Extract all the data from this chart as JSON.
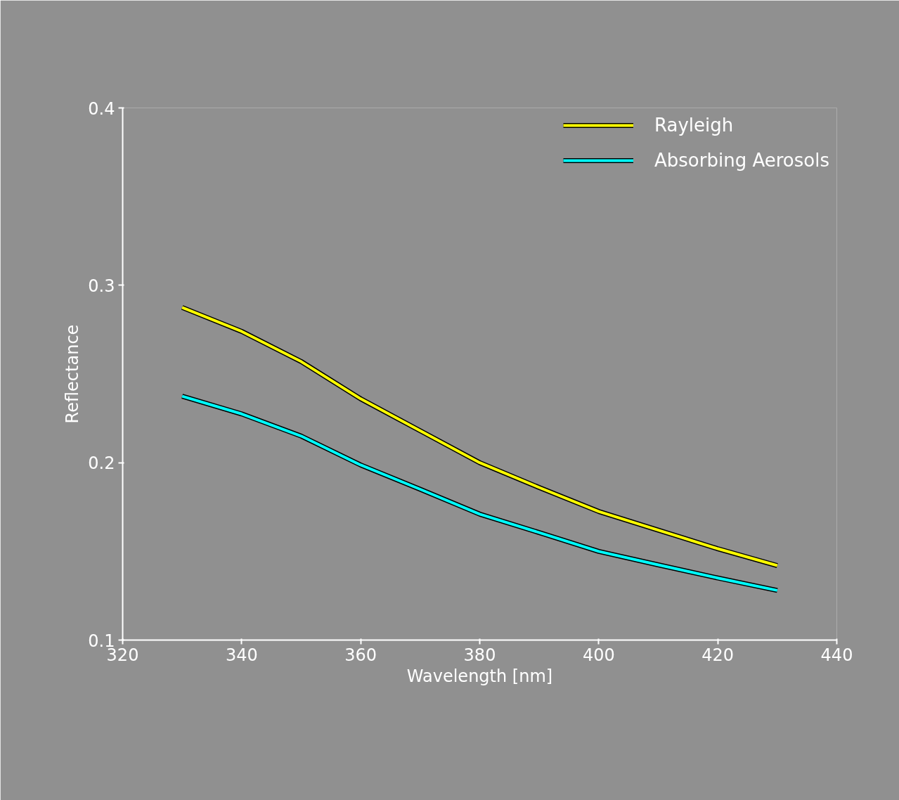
{
  "chart_data": {
    "type": "line",
    "xlabel": "Wavelength [nm]",
    "ylabel": "Reflectance",
    "x": [
      330,
      340,
      350,
      360,
      370,
      380,
      390,
      400,
      410,
      420,
      430
    ],
    "series": [
      {
        "name": "Rayleigh",
        "color": "#ffff00",
        "values": [
          0.2875,
          0.274,
          0.257,
          0.236,
          0.218,
          0.2,
          0.186,
          0.1725,
          0.162,
          0.1515,
          0.142
        ]
      },
      {
        "name": "Absorbing Aerosols",
        "color": "#00ffff",
        "values": [
          0.2375,
          0.2275,
          0.215,
          0.1987,
          0.185,
          0.171,
          0.1606,
          0.15,
          0.1424,
          0.135,
          0.128
        ]
      }
    ],
    "xlim": [
      320,
      440
    ],
    "xticks": [
      320,
      340,
      360,
      380,
      400,
      420,
      440
    ],
    "ylim": [
      0.1,
      0.4
    ],
    "yticks": [
      0.1,
      0.2,
      0.3,
      0.4
    ],
    "grid": false,
    "legend": "top right",
    "line_style": "solid",
    "marker": "none"
  }
}
